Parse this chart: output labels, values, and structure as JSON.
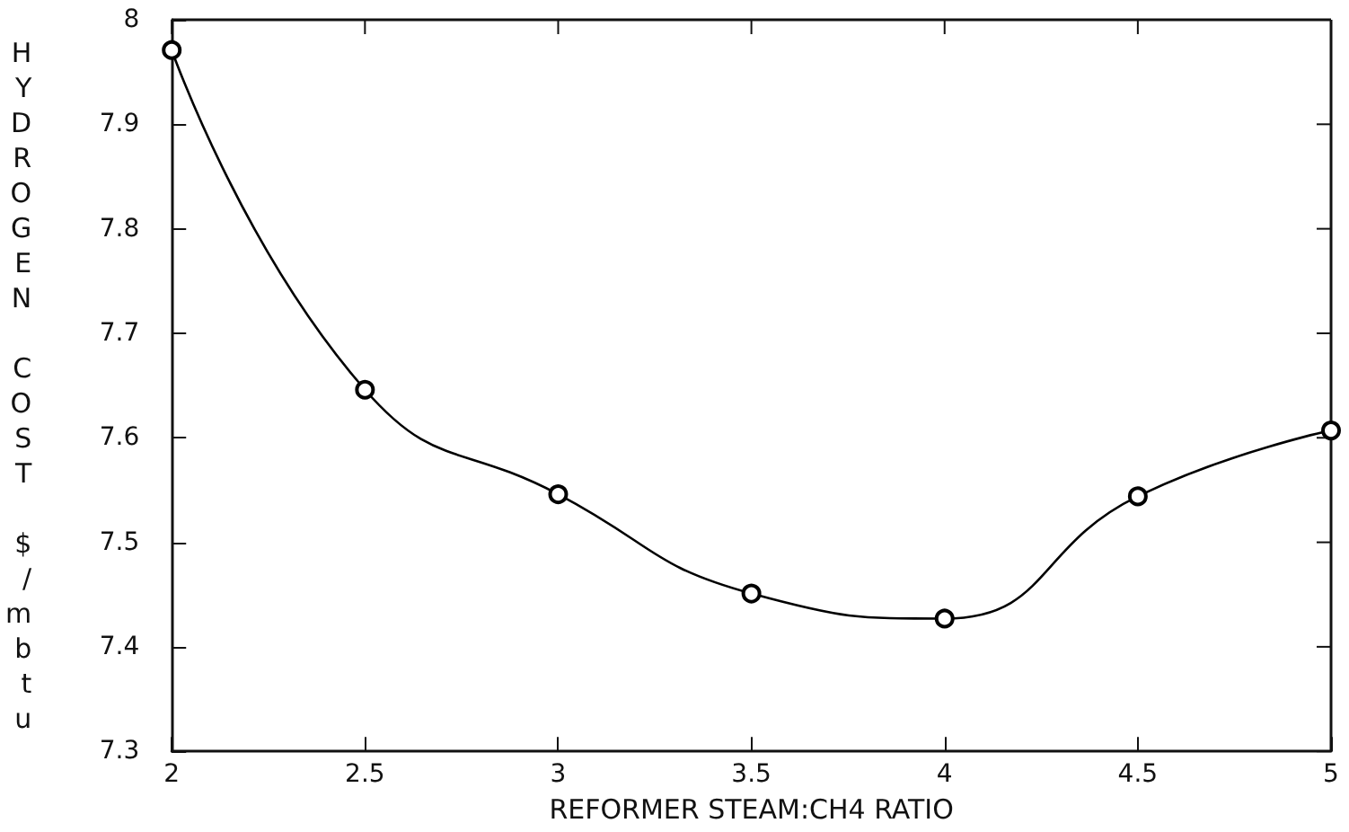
{
  "chart_data": {
    "type": "line",
    "xlabel": "REFORMER STEAM:CH4 RATIO",
    "ylabel": "HYDROGEN COST $/mbtu",
    "x": [
      2,
      2.5,
      3,
      3.5,
      4,
      4.5,
      5
    ],
    "series": [
      {
        "color": "#000000",
        "values": [
          7.971,
          7.646,
          7.546,
          7.451,
          7.427,
          7.544,
          7.607
        ]
      }
    ],
    "xlim": [
      2,
      5
    ],
    "xticks": [
      2,
      2.5,
      3,
      3.5,
      4,
      4.5,
      5
    ],
    "ylim": [
      7.3,
      8
    ],
    "yticks": [
      7.3,
      7.4,
      7.5,
      7.6,
      7.7,
      7.8,
      7.9,
      8
    ],
    "marker": "circle",
    "line_style": "solid",
    "grid": false
  }
}
